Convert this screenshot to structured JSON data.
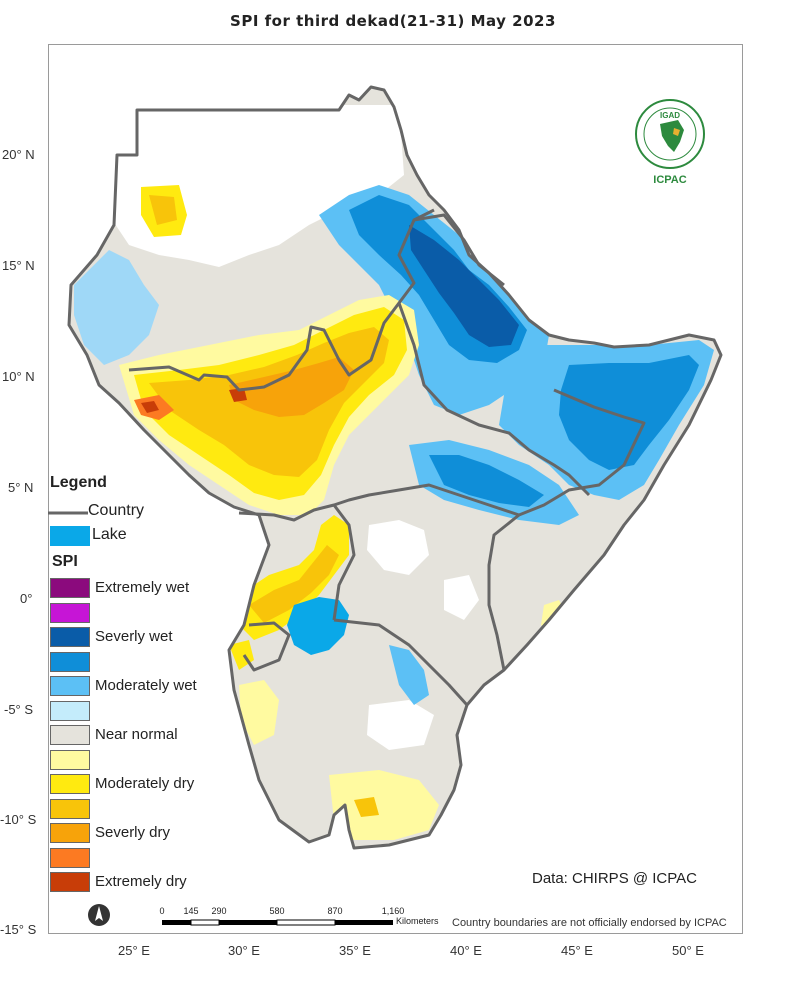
{
  "title": "SPI  for  third dekad(21-31)  May 2023",
  "lat_labels": [
    "20° N",
    "15° N",
    "10° N",
    "5° N",
    "0°",
    "-5° S",
    "-10° S",
    "-15° S"
  ],
  "lon_labels": [
    "25° E",
    "30° E",
    "35° E",
    "40° E",
    "45° E",
    "50° E"
  ],
  "legend": {
    "title": "Legend",
    "country": "Country",
    "lake": "Lake",
    "spi_title": "SPI",
    "classes": [
      {
        "label": "Extremely wet",
        "color": "#8b0a7d"
      },
      {
        "label": "",
        "color": "#c615d6"
      },
      {
        "label": "Severly wet",
        "color": "#0a5ca8"
      },
      {
        "label": "",
        "color": "#0f8ed8"
      },
      {
        "label": "Moderately wet",
        "color": "#5cc0f5"
      },
      {
        "label": "",
        "color": "#c4ecfb"
      },
      {
        "label": "Near normal",
        "color": "#e5e3dc"
      },
      {
        "label": "",
        "color": "#fffaa0"
      },
      {
        "label": "Moderately dry",
        "color": "#ffea10"
      },
      {
        "label": "",
        "color": "#f8c40a"
      },
      {
        "label": "Severly dry",
        "color": "#f7a30a"
      },
      {
        "label": "",
        "color": "#fc7a22"
      },
      {
        "label": "Extremely dry",
        "color": "#c83d08"
      }
    ],
    "country_color": "#666666",
    "lake_color": "#0aa8e8"
  },
  "credit": "Data: CHIRPS @ ICPAC",
  "disclaimer": "Country boundaries are not officially endorsed by ICPAC",
  "scale": {
    "ticks": [
      "0",
      "145",
      "290",
      "580",
      "870",
      "1,160"
    ],
    "unit": "Kilometers"
  },
  "logo": {
    "top_text": "IGAD",
    "bottom_text": "ICPAC"
  }
}
